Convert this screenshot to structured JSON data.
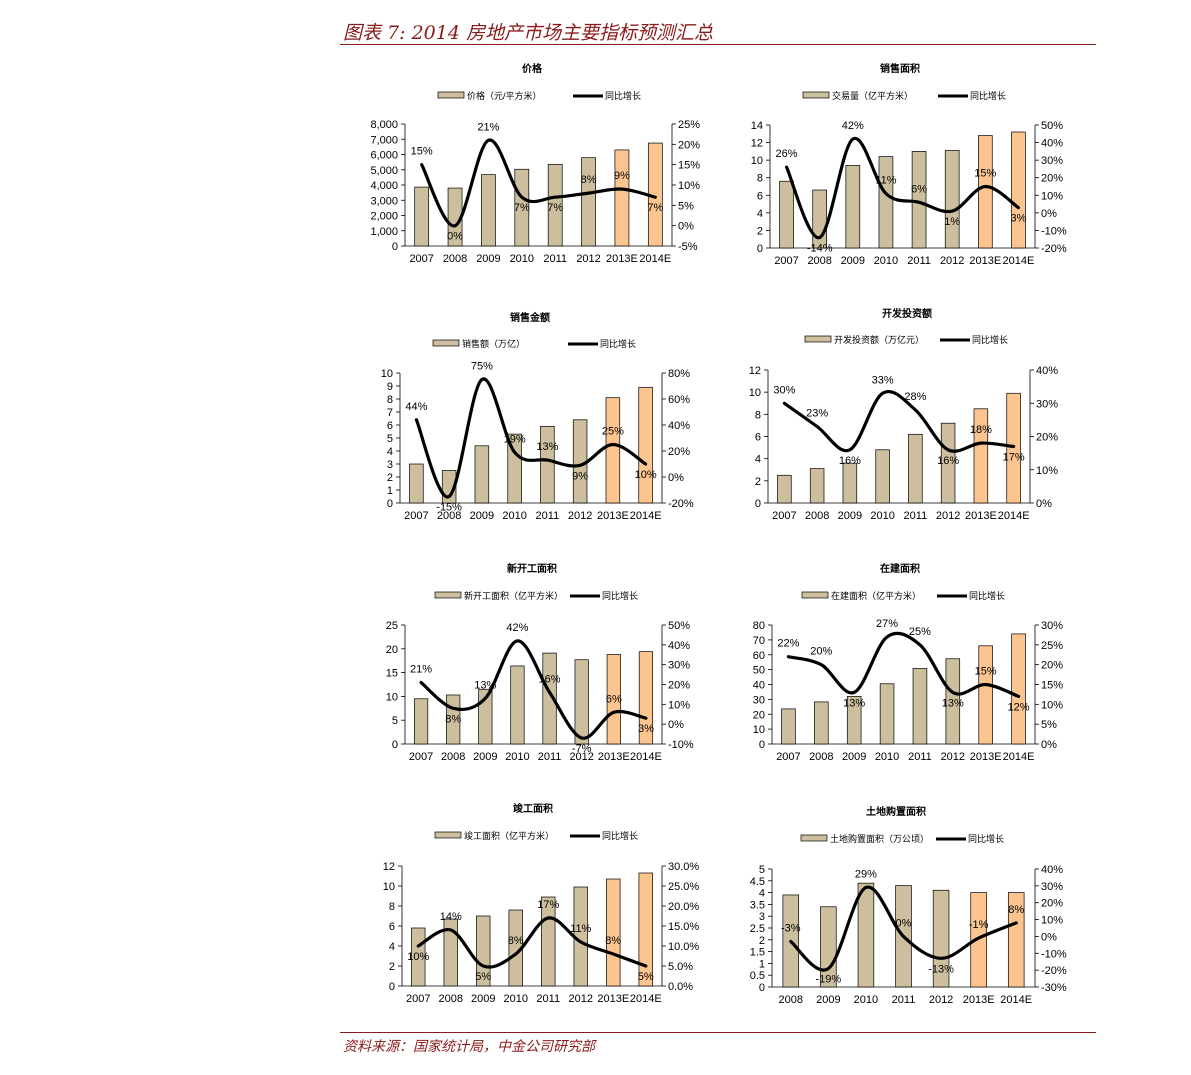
{
  "page": {
    "title": "图表 7: 2014 房地产市场主要指标预测汇总",
    "source": "资料来源：国家统计局，中金公司研究部"
  },
  "colors": {
    "bar_actual": "#cdbf9d",
    "bar_forecast": "#fcc590",
    "bar_stroke": "#000000",
    "line": "#000000",
    "accent_red": "#8b1a1a"
  },
  "chart_data": [
    {
      "type": "bar+line",
      "title": "价格",
      "bar_name": "价格（元/平方米）",
      "line_name": "同比增长",
      "categories": [
        "2007",
        "2008",
        "2009",
        "2010",
        "2011",
        "2012",
        "2013E",
        "2014E"
      ],
      "values": [
        3864,
        3800,
        4681,
        5032,
        5357,
        5791,
        6300,
        6750
      ],
      "forecast_from": 6,
      "growth": [
        15,
        0,
        21,
        7,
        7,
        8,
        9,
        7
      ],
      "growth_labels": [
        "15%",
        "0%",
        "21%",
        "7%",
        "7%",
        "8%",
        "9%",
        "7%"
      ],
      "left_ticks": [
        "0",
        "1,000",
        "2,000",
        "3,000",
        "4,000",
        "5,000",
        "6,000",
        "7,000",
        "8,000"
      ],
      "ylim": [
        0,
        8000
      ],
      "right_ticks": [
        "-5%",
        "0%",
        "5%",
        "10%",
        "15%",
        "20%",
        "25%"
      ],
      "y2lim": [
        -5,
        25
      ]
    },
    {
      "type": "bar+line",
      "title": "销售面积",
      "bar_name": "交易量（亿平方米）",
      "line_name": "同比增长",
      "categories": [
        "2007",
        "2008",
        "2009",
        "2010",
        "2011",
        "2012",
        "2013E",
        "2014E"
      ],
      "values": [
        7.6,
        6.6,
        9.4,
        10.4,
        11.0,
        11.1,
        12.8,
        13.2
      ],
      "forecast_from": 6,
      "growth": [
        26,
        -14,
        42,
        11,
        6,
        1,
        15,
        3
      ],
      "growth_labels": [
        "26%",
        "-14%",
        "42%",
        "11%",
        "6%",
        "1%",
        "15%",
        "3%"
      ],
      "left_ticks": [
        "0",
        "2",
        "4",
        "6",
        "8",
        "10",
        "12",
        "14"
      ],
      "ylim": [
        0,
        14
      ],
      "right_ticks": [
        "-20%",
        "-10%",
        "0%",
        "10%",
        "20%",
        "30%",
        "40%",
        "50%"
      ],
      "y2lim": [
        -20,
        50
      ]
    },
    {
      "type": "bar+line",
      "title": "销售金额",
      "bar_name": "销售额（万亿）",
      "line_name": "同比增长",
      "categories": [
        "2007",
        "2008",
        "2009",
        "2010",
        "2011",
        "2012",
        "2013E",
        "2014E"
      ],
      "values": [
        3.0,
        2.5,
        4.4,
        5.3,
        5.9,
        6.4,
        8.1,
        8.9
      ],
      "forecast_from": 6,
      "growth": [
        44,
        -15,
        75,
        19,
        13,
        9,
        25,
        10
      ],
      "growth_labels": [
        "44%",
        "-15%",
        "75%",
        "19%",
        "13%",
        "9%",
        "25%",
        "10%"
      ],
      "left_ticks": [
        "0",
        "1",
        "2",
        "3",
        "4",
        "5",
        "6",
        "7",
        "8",
        "9",
        "10"
      ],
      "ylim": [
        0,
        10
      ],
      "right_ticks": [
        "-20%",
        "0%",
        "20%",
        "40%",
        "60%",
        "80%"
      ],
      "y2lim": [
        -20,
        80
      ]
    },
    {
      "type": "bar+line",
      "title": "开发投资额",
      "bar_name": "开发投资额（万亿元）",
      "line_name": "同比增长",
      "categories": [
        "2007",
        "2008",
        "2009",
        "2010",
        "2011",
        "2012",
        "2013E",
        "2014E"
      ],
      "values": [
        2.5,
        3.1,
        3.6,
        4.8,
        6.2,
        7.2,
        8.5,
        9.9
      ],
      "forecast_from": 6,
      "growth": [
        30,
        23,
        16,
        33,
        28,
        16,
        18,
        17
      ],
      "growth_labels": [
        "30%",
        "23%",
        "16%",
        "33%",
        "28%",
        "16%",
        "18%",
        "17%"
      ],
      "left_ticks": [
        "0",
        "2",
        "4",
        "6",
        "8",
        "10",
        "12"
      ],
      "ylim": [
        0,
        12
      ],
      "right_ticks": [
        "0%",
        "10%",
        "20%",
        "30%",
        "40%"
      ],
      "y2lim": [
        0,
        40
      ]
    },
    {
      "type": "bar+line",
      "title": "新开工面积",
      "bar_name": "新开工面积（亿平方米）",
      "line_name": "同比增长",
      "categories": [
        "2007",
        "2008",
        "2009",
        "2010",
        "2011",
        "2012",
        "2013E",
        "2014E"
      ],
      "values": [
        9.5,
        10.3,
        11.5,
        16.4,
        19.1,
        17.7,
        18.8,
        19.4
      ],
      "forecast_from": 6,
      "growth": [
        21,
        8,
        13,
        42,
        16,
        -7,
        6,
        3
      ],
      "growth_labels": [
        "21%",
        "8%",
        "13%",
        "42%",
        "16%",
        "-7%",
        "6%",
        "3%"
      ],
      "left_ticks": [
        "0",
        "5",
        "10",
        "15",
        "20",
        "25"
      ],
      "ylim": [
        0,
        25
      ],
      "right_ticks": [
        "-10%",
        "0%",
        "10%",
        "20%",
        "30%",
        "40%",
        "50%"
      ],
      "y2lim": [
        -10,
        50
      ]
    },
    {
      "type": "bar+line",
      "title": "在建面积",
      "bar_name": "在建面积（亿平方米）",
      "line_name": "同比增长",
      "categories": [
        "2007",
        "2008",
        "2009",
        "2010",
        "2011",
        "2012",
        "2013E",
        "2014E"
      ],
      "values": [
        23.6,
        28.3,
        32.0,
        40.5,
        50.8,
        57.3,
        66.0,
        74.0
      ],
      "forecast_from": 6,
      "growth": [
        22,
        20,
        13,
        27,
        25,
        13,
        15,
        12
      ],
      "growth_labels": [
        "22%",
        "20%",
        "13%",
        "27%",
        "25%",
        "13%",
        "15%",
        "12%"
      ],
      "left_ticks": [
        "0",
        "10",
        "20",
        "30",
        "40",
        "50",
        "60",
        "70",
        "80"
      ],
      "ylim": [
        0,
        80
      ],
      "right_ticks": [
        "0%",
        "5%",
        "10%",
        "15%",
        "20%",
        "25%",
        "30%"
      ],
      "y2lim": [
        0,
        30
      ]
    },
    {
      "type": "bar+line",
      "title": "竣工面积",
      "bar_name": "竣工面积（亿平方米）",
      "line_name": "同比增长",
      "categories": [
        "2007",
        "2008",
        "2009",
        "2010",
        "2011",
        "2012",
        "2013E",
        "2014E"
      ],
      "values": [
        5.8,
        6.7,
        7.0,
        7.6,
        8.9,
        9.9,
        10.7,
        11.3
      ],
      "forecast_from": 6,
      "growth": [
        10,
        14,
        5,
        8,
        17,
        11,
        8,
        5
      ],
      "growth_labels": [
        "10%",
        "14%",
        "5%",
        "8%",
        "17%",
        "11%",
        "8%",
        "5%"
      ],
      "left_ticks": [
        "0",
        "2",
        "4",
        "6",
        "8",
        "10",
        "12"
      ],
      "ylim": [
        0,
        12
      ],
      "right_ticks": [
        "0.0%",
        "5.0%",
        "10.0%",
        "15.0%",
        "20.0%",
        "25.0%",
        "30.0%"
      ],
      "y2lim": [
        0,
        30
      ]
    },
    {
      "type": "bar+line",
      "title": "土地购置面积",
      "bar_name": "土地购置面积（万公顷）",
      "line_name": "同比增长",
      "categories": [
        "2008",
        "2009",
        "2010",
        "2011",
        "2012",
        "2013E",
        "2014E"
      ],
      "values": [
        3.9,
        3.4,
        4.4,
        4.3,
        4.1,
        4.0,
        4.0
      ],
      "forecast_from": 5,
      "growth": [
        -3,
        -19,
        29,
        0,
        -13,
        -1,
        8
      ],
      "growth_labels": [
        "-3%",
        "-19%",
        "29%",
        "0%",
        "-13%",
        "-1%",
        "8%"
      ],
      "left_ticks": [
        "0",
        "0.5",
        "1",
        "1.5",
        "2",
        "2.5",
        "3",
        "3.5",
        "4",
        "4.5",
        "5"
      ],
      "ylim": [
        0,
        5
      ],
      "right_ticks": [
        "-30%",
        "-20%",
        "-10%",
        "0%",
        "10%",
        "20%",
        "30%",
        "40%"
      ],
      "y2lim": [
        -30,
        40
      ]
    }
  ]
}
